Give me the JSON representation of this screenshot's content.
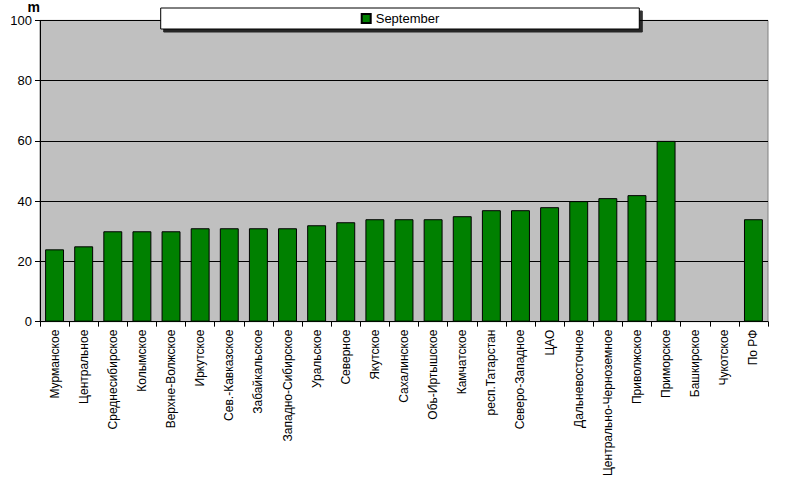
{
  "chart_data": {
    "type": "bar",
    "y_label": "m",
    "categories": [
      "Мурманское",
      "Центральное",
      "Среднесибирское",
      "Колымское",
      "Верхне-Волжское",
      "Иркутское",
      "Сев.-Кавказское",
      "Забайкальское",
      "Западно-Сибирское",
      "Уральское",
      "Северное",
      "Якутское",
      "Сахалинское",
      "Обь-Иртышское",
      "Камчатское",
      "респ.Татарстан",
      "Северо-Западное",
      "ЦАО",
      "Дальневосточное",
      "Центрально-Черноземное",
      "Приволжское",
      "Приморское",
      "Башкирское",
      "Чукотское",
      "По РФ"
    ],
    "series": [
      {
        "name": "September",
        "color": "#008000",
        "values": [
          24,
          25,
          30,
          30,
          30,
          31,
          31,
          31,
          31,
          32,
          33,
          34,
          34,
          34,
          35,
          37,
          37,
          38,
          40,
          41,
          42,
          60,
          null,
          null,
          34
        ]
      }
    ],
    "ylim": [
      0,
      100
    ],
    "yticks": [
      0,
      20,
      40,
      60,
      80,
      100
    ],
    "grid": true,
    "legend": "top"
  }
}
